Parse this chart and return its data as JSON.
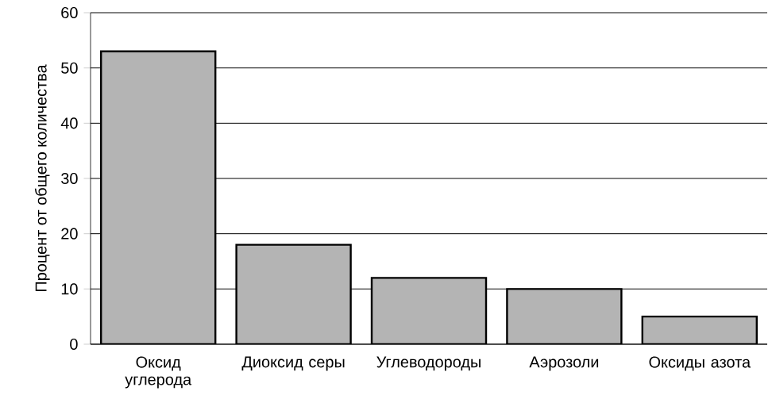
{
  "chart_data": {
    "type": "bar",
    "ylabel": "Процент от общего количества",
    "categories": [
      "Оксид углерода",
      "Диоксид серы",
      "Углеводороды",
      "Аэрозоли",
      "Оксиды азота"
    ],
    "values": [
      53,
      18,
      12,
      10,
      5
    ],
    "color": "#b4b4b4",
    "ylim": [
      0,
      60
    ],
    "yticks": [
      0,
      10,
      20,
      30,
      40,
      50,
      60
    ],
    "grid": "y"
  }
}
